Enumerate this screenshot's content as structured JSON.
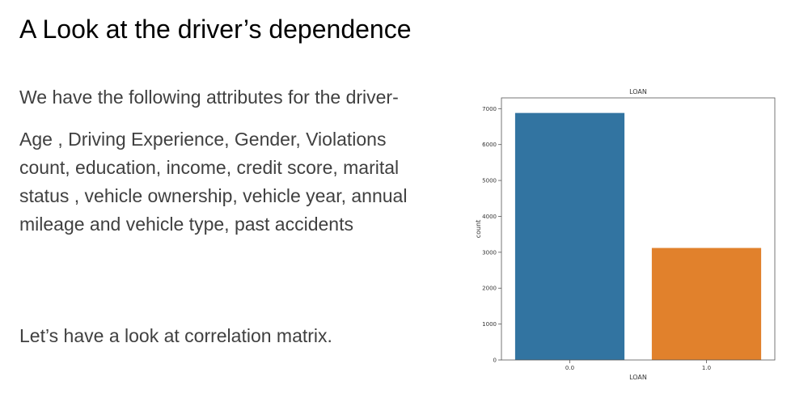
{
  "slide": {
    "title": "A Look at the driver’s dependence",
    "intro": "We have the following attributes for the driver-",
    "attributes": "Age , Driving Experience, Gender, Violations count,  education, income, credit score, marital status , vehicle ownership, vehicle year, annual mileage and vehicle type, past accidents",
    "outro": "Let’s have a look at correlation matrix."
  },
  "chart_data": {
    "type": "bar",
    "title": "LOAN",
    "xlabel": "LOAN",
    "ylabel": "count",
    "categories": [
      "0.0",
      "1.0"
    ],
    "values": [
      6880,
      3120
    ],
    "colors": [
      "#3274a1",
      "#e1812c"
    ],
    "ylim": [
      0,
      7300
    ],
    "yticks": [
      0,
      1000,
      2000,
      3000,
      4000,
      5000,
      6000,
      7000
    ],
    "grid": false
  }
}
